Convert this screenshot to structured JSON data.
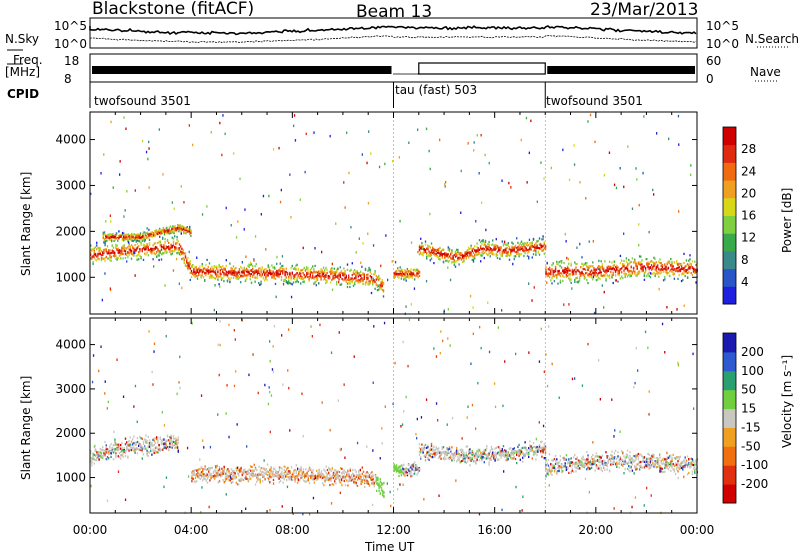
{
  "header": {
    "station": "Blackstone (fitACF)",
    "beam": "Beam 13",
    "date": "23/Mar/2013"
  },
  "aux": {
    "nsky_label": "N.Sky",
    "nsky_ticks": [
      "10^5",
      "10^0"
    ],
    "nsearch_label": "N.Search",
    "nsearch_ticks": [
      "10^5",
      "10^0"
    ],
    "freq_label": "Freq.",
    "freq_unit": "[MHz]",
    "freq_ticks": [
      "18",
      "8"
    ],
    "nave_label": "Nave",
    "nave_ticks": [
      "60",
      "0"
    ],
    "cpid_label": "CPID",
    "cpid_segments": [
      {
        "label": "twofsound 3501",
        "start": 0,
        "end": 12.0
      },
      {
        "label": "tau (fast) 503",
        "start": 12.0,
        "end": 18.0
      },
      {
        "label": "twofsound 3501",
        "start": 18.0,
        "end": 24.0
      }
    ]
  },
  "chart_data": [
    {
      "type": "heatmap",
      "panel": "power",
      "ylabel": "Slant Range [km]",
      "yticks": [
        "1000",
        "2000",
        "3000",
        "4000"
      ],
      "ylim": [
        200,
        4600
      ],
      "xlim": [
        0,
        24
      ],
      "colorbar_label": "Power [dB]",
      "colorbar_ticks": [
        "28",
        "24",
        "20",
        "16",
        "12",
        "8",
        "4"
      ],
      "colors": [
        "#1f1fe0",
        "#2a55c8",
        "#3a8a8a",
        "#39a94a",
        "#7fd040",
        "#d7d719",
        "#f0a020",
        "#f06a10",
        "#e02a10",
        "#d00000"
      ],
      "scatter_bands": [
        {
          "x": [
            0,
            1.5,
            3.5,
            4.0,
            8.0,
            11.2,
            11.6
          ],
          "y": [
            1500,
            1600,
            1700,
            1150,
            1100,
            1000,
            800
          ],
          "spread": 350
        },
        {
          "x": [
            0.5,
            2.0,
            3.5,
            4.0
          ],
          "y": [
            1900,
            1900,
            2100,
            2000
          ],
          "spread": 150
        },
        {
          "x": [
            12.0,
            13.0
          ],
          "y": [
            1100,
            1100
          ],
          "spread": 220
        },
        {
          "x": [
            13.0,
            14.5,
            15.5,
            16.5,
            18.0
          ],
          "y": [
            1650,
            1450,
            1650,
            1600,
            1700
          ],
          "spread": 300
        },
        {
          "x": [
            18.0,
            20.0,
            22.0,
            24.0
          ],
          "y": [
            1150,
            1150,
            1250,
            1200
          ],
          "spread": 400
        }
      ]
    },
    {
      "type": "heatmap",
      "panel": "velocity",
      "ylabel": "Slant Range [km]",
      "yticks": [
        "1000",
        "2000",
        "3000",
        "4000"
      ],
      "ylim": [
        200,
        4600
      ],
      "xlim": [
        0,
        24
      ],
      "xticks": [
        "00:00",
        "04:00",
        "08:00",
        "12:00",
        "16:00",
        "20:00",
        "00:00"
      ],
      "xlabel": "Time UT",
      "colorbar_label": "Velocity [m s⁻¹]",
      "colorbar_ticks": [
        "200",
        "100",
        "50",
        "15",
        "-15",
        "-50",
        "-100",
        "-200"
      ],
      "colors": [
        "#1a1ab0",
        "#2d5ad0",
        "#2aa070",
        "#6fcf3f",
        "#c8c8c0",
        "#f0a020",
        "#f07010",
        "#e03010",
        "#d00000"
      ],
      "scatter_bands": [
        {
          "x": [
            0,
            1.5,
            3.5
          ],
          "y": [
            1500,
            1700,
            1800
          ],
          "spread": 350
        },
        {
          "x": [
            4.0,
            8.0,
            11.2,
            11.6
          ],
          "y": [
            1100,
            1100,
            1000,
            700
          ],
          "spread": 300
        },
        {
          "x": [
            12.0,
            13.0
          ],
          "y": [
            1200,
            1200
          ],
          "spread": 220
        },
        {
          "x": [
            13.0,
            15.0,
            18.0
          ],
          "y": [
            1650,
            1500,
            1650
          ],
          "spread": 300
        },
        {
          "x": [
            18.0,
            21.0,
            24.0
          ],
          "y": [
            1300,
            1400,
            1300
          ],
          "spread": 350
        }
      ]
    }
  ]
}
